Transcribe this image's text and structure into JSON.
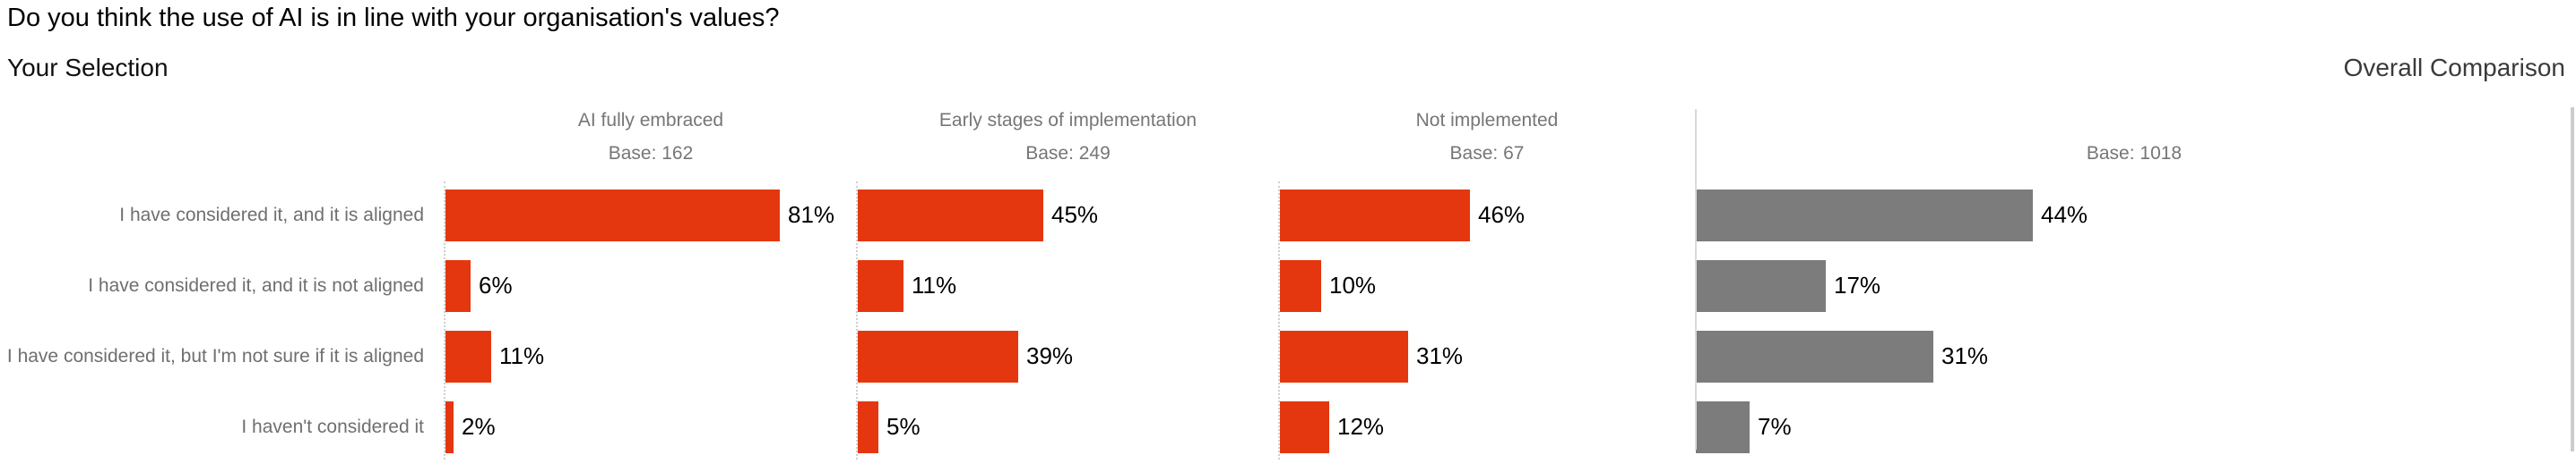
{
  "ui": {
    "title": "Do you think the use of AI is in line with your organisation's values?",
    "left_section_label": "Your Selection",
    "right_section_label": "Overall Comparison"
  },
  "chart_data": {
    "type": "bar",
    "orientation": "horizontal",
    "unit": "%",
    "xlim": [
      0,
      100
    ],
    "value_labels": "outside-end",
    "grid": "dotted-left-axis-per-column",
    "categories": [
      "I have considered it, and it is aligned",
      "I have considered it, and it is not aligned",
      "I have considered it, but I'm not sure if it is aligned",
      "I haven't considered it"
    ],
    "series": [
      {
        "name": "AI fully embraced",
        "base_label": "Base: 162",
        "panel": "your-selection",
        "color": "#e5370f",
        "values": [
          81,
          6,
          11,
          2
        ]
      },
      {
        "name": "Early stages of implementation",
        "base_label": "Base: 249",
        "panel": "your-selection",
        "color": "#e5370f",
        "values": [
          45,
          11,
          39,
          5
        ]
      },
      {
        "name": "Not implemented",
        "base_label": "Base: 67",
        "panel": "your-selection",
        "color": "#e5370f",
        "values": [
          46,
          10,
          31,
          12
        ]
      },
      {
        "name": "",
        "base_label": "Base: 1018",
        "panel": "overall-comparison",
        "color": "#7c7c7c",
        "values": [
          44,
          17,
          31,
          7
        ]
      }
    ],
    "colors": {
      "selection_bar": "#e5370f",
      "overall_bar": "#7c7c7c",
      "row_label_text": "#6f6f6f",
      "header_text": "#767676",
      "value_text": "#000000",
      "divider": "#d9d9d9"
    }
  }
}
